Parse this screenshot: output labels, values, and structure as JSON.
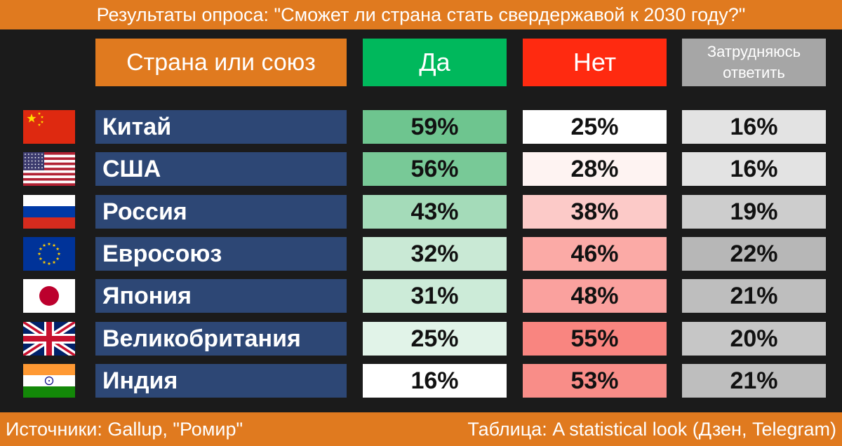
{
  "title": "Результаты опроса: \"Сможет ли страна стать свердержавой к 2030 году?\"",
  "footer": {
    "sources": "Источники: Gallup, \"Ромир\"",
    "credit": "Таблица: A statistical look (Дзен, Telegram)"
  },
  "colors": {
    "header_orange": "#e07a1f",
    "yes_header": "#00b85c",
    "no_header": "#ff2a10",
    "unsure_header": "#a6a6a6",
    "country_cell": "#2d4775"
  },
  "chart_data": {
    "type": "table",
    "columns": [
      "Страна или союз",
      "Да",
      "Нет",
      "Затрудняюсь ответить"
    ],
    "rows": [
      {
        "flag": "china-flag-icon",
        "country": "Китай",
        "yes": "59%",
        "no": "25%",
        "unsure": "16%"
      },
      {
        "flag": "usa-flag-icon",
        "country": "США",
        "yes": "56%",
        "no": "28%",
        "unsure": "16%"
      },
      {
        "flag": "russia-flag-icon",
        "country": "Россия",
        "yes": "43%",
        "no": "38%",
        "unsure": "19%"
      },
      {
        "flag": "eu-flag-icon",
        "country": "Евросоюз",
        "yes": "32%",
        "no": "46%",
        "unsure": "22%"
      },
      {
        "flag": "japan-flag-icon",
        "country": "Япония",
        "yes": "31%",
        "no": "48%",
        "unsure": "21%"
      },
      {
        "flag": "uk-flag-icon",
        "country": "Великобритания",
        "yes": "25%",
        "no": "55%",
        "unsure": "20%"
      },
      {
        "flag": "india-flag-icon",
        "country": "Индия",
        "yes": "16%",
        "no": "53%",
        "unsure": "21%"
      }
    ]
  }
}
